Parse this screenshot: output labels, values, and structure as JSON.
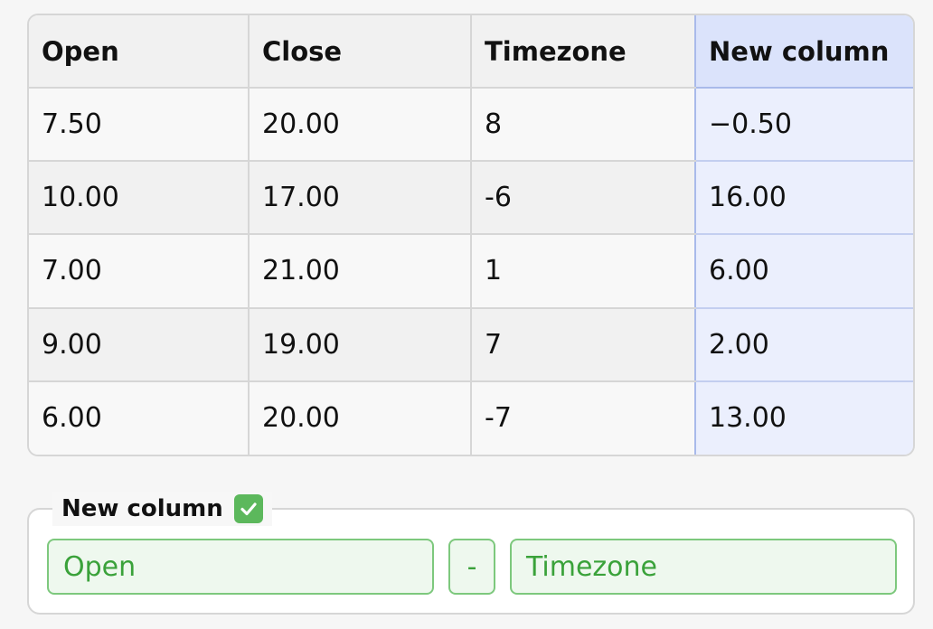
{
  "table": {
    "headers": [
      "Open",
      "Close",
      "Timezone",
      "New column"
    ],
    "rows": [
      [
        "7.50",
        "20.00",
        "8",
        "−0.50"
      ],
      [
        "10.00",
        "17.00",
        "-6",
        "16.00"
      ],
      [
        "7.00",
        "21.00",
        "1",
        "6.00"
      ],
      [
        "9.00",
        "19.00",
        "7",
        "2.00"
      ],
      [
        "6.00",
        "20.00",
        "-7",
        "13.00"
      ]
    ]
  },
  "formula": {
    "title": "New column",
    "status_icon": "check-icon",
    "left_operand": "Open",
    "operator": "-",
    "right_operand": "Timezone"
  },
  "colors": {
    "new_column_header": "#dbe3fb",
    "new_column_cells": "#ebeffd",
    "valid_green": "#5cb85c"
  }
}
